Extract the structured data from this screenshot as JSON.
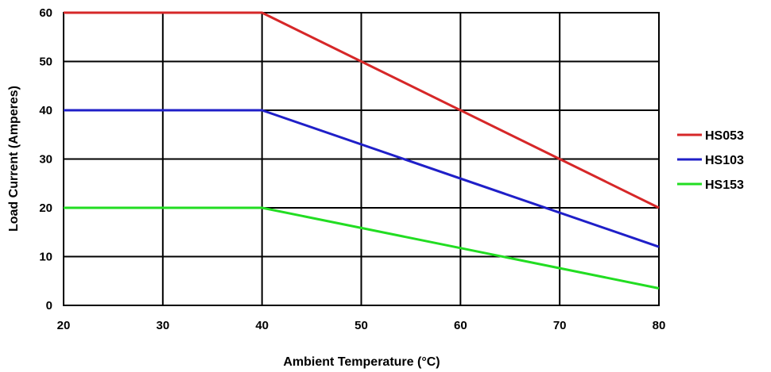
{
  "chart_data": {
    "type": "line",
    "xlabel": "Ambient Temperature (°C)",
    "ylabel": "Load Current (Amperes)",
    "xlim": [
      20,
      80
    ],
    "ylim": [
      0,
      60
    ],
    "xticks": [
      20,
      30,
      40,
      50,
      60,
      70,
      80
    ],
    "yticks": [
      0,
      10,
      20,
      30,
      40,
      50,
      60
    ],
    "grid": true,
    "legend_position": "right",
    "series": [
      {
        "name": "HS053",
        "color": "#d62728",
        "x": [
          20,
          40,
          80
        ],
        "y": [
          60,
          60,
          20
        ]
      },
      {
        "name": "HS103",
        "color": "#1f1fc8",
        "x": [
          20,
          40,
          80
        ],
        "y": [
          40,
          40,
          12
        ]
      },
      {
        "name": "HS153",
        "color": "#22dd22",
        "x": [
          20,
          40,
          80
        ],
        "y": [
          20,
          20,
          3.5
        ]
      }
    ]
  }
}
